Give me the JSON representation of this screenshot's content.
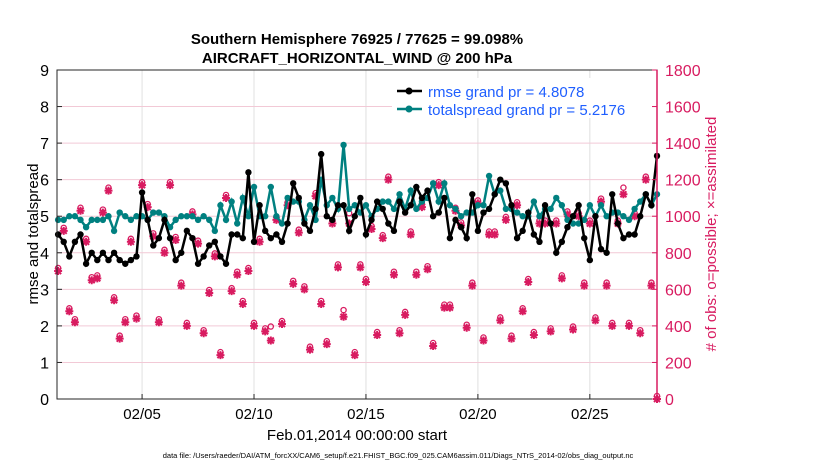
{
  "chart_data": {
    "type": "line",
    "title": [
      "Southern Hemisphere 76925 / 77625 = 99.098%",
      "AIRCRAFT_HORIZONTAL_WIND @ 200 hPa"
    ],
    "xlabel": "Feb.01,2014 00:00:00 start",
    "ylabel": "rmse and totalspread",
    "y2label": "# of obs: o=possible; ×=assimilated",
    "footnote": "data file: /Users/raeder/DAI/ATM_forcXX/CAM6_setup/f.e21.FHIST_BGC.f09_025.CAM6assim.011/Diags_NTrS_2014-02/obs_diag_output.nc",
    "x_unit": "day of February 2014",
    "xlim": [
      1.2,
      28.0
    ],
    "xticks": [
      {
        "v": 5,
        "label": "02/05"
      },
      {
        "v": 10,
        "label": "02/10"
      },
      {
        "v": 15,
        "label": "02/15"
      },
      {
        "v": 20,
        "label": "02/20"
      },
      {
        "v": 25,
        "label": "02/25"
      }
    ],
    "ylim": [
      0,
      9
    ],
    "yticks": [
      "0",
      "1",
      "2",
      "3",
      "4",
      "5",
      "6",
      "7",
      "8",
      "9"
    ],
    "y2lim": [
      0,
      1800
    ],
    "y2ticks": [
      "0",
      "200",
      "400",
      "600",
      "800",
      "1000",
      "1200",
      "1400",
      "1600",
      "1800"
    ],
    "grid": true,
    "legend_placement": "top-right",
    "colors": {
      "rmse": "#000000",
      "spread": "#008080",
      "obs": "#d81b60",
      "legend_text": "#1f5fff"
    },
    "x_start": 1.25,
    "x_step": 0.25,
    "series": [
      {
        "name": "rmse grand pr = 4.8078",
        "axis": "left",
        "values": [
          4.5,
          4.3,
          3.9,
          4.3,
          4.5,
          3.7,
          4.0,
          3.8,
          4.0,
          3.8,
          4.0,
          3.8,
          3.7,
          3.8,
          3.9,
          5.65,
          4.9,
          4.2,
          4.4,
          4.9,
          4.4,
          3.8,
          4.0,
          4.6,
          4.4,
          3.7,
          3.9,
          4.2,
          4.3,
          3.9,
          3.7,
          4.5,
          4.5,
          4.4,
          6.2,
          4.3,
          5.3,
          4.6,
          4.4,
          4.5,
          4.3,
          4.8,
          5.9,
          5.5,
          4.8,
          4.6,
          5.2,
          6.7,
          5.0,
          4.9,
          5.3,
          5.3,
          4.6,
          5.0,
          5.5,
          4.5,
          4.9,
          5.4,
          5.2,
          4.8,
          4.6,
          5.4,
          5.1,
          5.3,
          5.8,
          5.5,
          5.7,
          5.0,
          5.1,
          5.5,
          4.4,
          4.9,
          4.7,
          4.4,
          5.6,
          4.6,
          5.1,
          5.2,
          5.6,
          6.0,
          5.9,
          5.3,
          4.4,
          4.6,
          5.1,
          4.5,
          4.3,
          5.3,
          4.8,
          4.0,
          4.3,
          4.7,
          5.0,
          5.3,
          4.4,
          3.8,
          5.0,
          4.1,
          4.0,
          5.6,
          4.8,
          4.4,
          4.5,
          4.5,
          5.0,
          5.6,
          5.3,
          6.65
        ]
      },
      {
        "name": "totalspread grand pr = 5.2176",
        "axis": "left",
        "values": [
          4.9,
          4.9,
          5.0,
          5.0,
          4.9,
          4.7,
          4.9,
          4.9,
          4.9,
          5.0,
          4.6,
          5.1,
          5.0,
          4.9,
          5.0,
          5.0,
          4.9,
          5.1,
          5.1,
          5.0,
          4.7,
          4.9,
          5.0,
          5.0,
          5.0,
          4.9,
          5.0,
          4.9,
          4.6,
          5.3,
          4.9,
          5.4,
          4.8,
          5.5,
          5.0,
          5.8,
          5.0,
          5.0,
          5.8,
          5.0,
          4.8,
          5.5,
          5.4,
          5.4,
          4.9,
          5.3,
          4.9,
          6.0,
          5.3,
          5.5,
          5.2,
          6.95,
          5.2,
          5.3,
          5.1,
          5.3,
          5.0,
          5.2,
          5.4,
          5.4,
          5.2,
          5.6,
          5.2,
          5.7,
          5.2,
          5.4,
          5.5,
          5.9,
          5.4,
          5.9,
          5.3,
          5.2,
          5.0,
          5.1,
          5.1,
          5.3,
          5.3,
          6.1,
          5.6,
          5.7,
          5.2,
          5.2,
          5.1,
          5.0,
          5.0,
          5.4,
          5.0,
          5.2,
          5.2,
          5.5,
          5.3,
          4.9,
          4.8,
          4.8,
          4.9,
          5.3,
          5.0,
          5.3,
          5.0,
          5.1,
          5.1,
          5.0,
          4.9,
          5.2,
          5.4,
          5.6,
          5.3,
          5.6
        ]
      },
      {
        "name": "assimilated",
        "axis": "right",
        "marker": "x",
        "values": [
          700,
          920,
          480,
          420,
          1030,
          860,
          650,
          660,
          1020,
          1140,
          540,
          330,
          420,
          860,
          440,
          1170,
          1050,
          890,
          420,
          800,
          1170,
          870,
          620,
          400,
          1010,
          850,
          360,
          580,
          780,
          240,
          1100,
          590,
          680,
          520,
          700,
          400,
          860,
          370,
          320,
          980,
          410,
          1060,
          630,
          910,
          600,
          270,
          1110,
          520,
          300,
          960,
          720,
          450,
          960,
          240,
          720,
          640,
          930,
          350,
          880,
          1200,
          680,
          360,
          460,
          900,
          680,
          1050,
          710,
          290,
          1170,
          500,
          500,
          1030,
          950,
          390,
          620,
          1070,
          320,
          900,
          900,
          430,
          980,
          330,
          1060,
          480,
          640,
          350,
          960,
          960,
          370,
          960,
          660,
          1010,
          380,
          1000,
          620,
          960,
          430,
          1080,
          620,
          400,
          960,
          1120,
          400,
          1000,
          360,
          1200,
          620,
          0
        ]
      },
      {
        "name": "possible",
        "axis": "right",
        "marker": "o",
        "values": [
          700,
          920,
          480,
          420,
          1030,
          860,
          650,
          660,
          1020,
          1140,
          540,
          330,
          420,
          860,
          440,
          1170,
          1050,
          890,
          420,
          800,
          1170,
          870,
          620,
          400,
          1010,
          850,
          360,
          580,
          780,
          240,
          1100,
          590,
          680,
          520,
          700,
          400,
          860,
          370,
          380,
          980,
          410,
          1060,
          630,
          910,
          600,
          270,
          1110,
          520,
          300,
          960,
          720,
          470,
          1000,
          240,
          720,
          640,
          930,
          350,
          880,
          1200,
          680,
          360,
          460,
          900,
          680,
          1050,
          710,
          290,
          1170,
          500,
          500,
          1030,
          950,
          390,
          620,
          1070,
          320,
          900,
          900,
          430,
          980,
          330,
          1060,
          480,
          640,
          350,
          960,
          960,
          370,
          960,
          660,
          1010,
          380,
          1000,
          620,
          960,
          430,
          1080,
          620,
          400,
          960,
          1140,
          400,
          1000,
          360,
          1200,
          620,
          0
        ]
      }
    ]
  }
}
